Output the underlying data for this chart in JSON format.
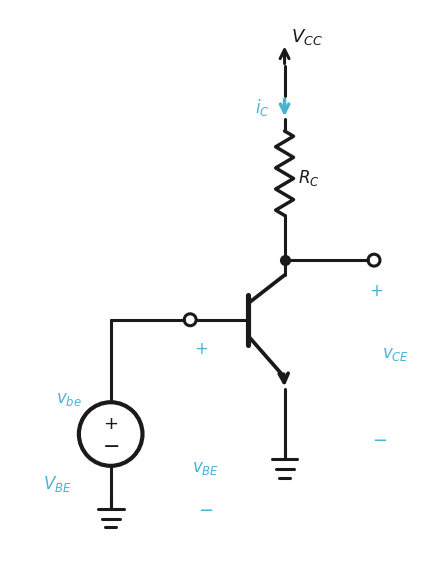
{
  "bg_color": "#ffffff",
  "black": "#1a1a1a",
  "blue": "#4ab3d4",
  "figsize": [
    4.38,
    5.68
  ],
  "dpi": 100,
  "lw": 2.2
}
